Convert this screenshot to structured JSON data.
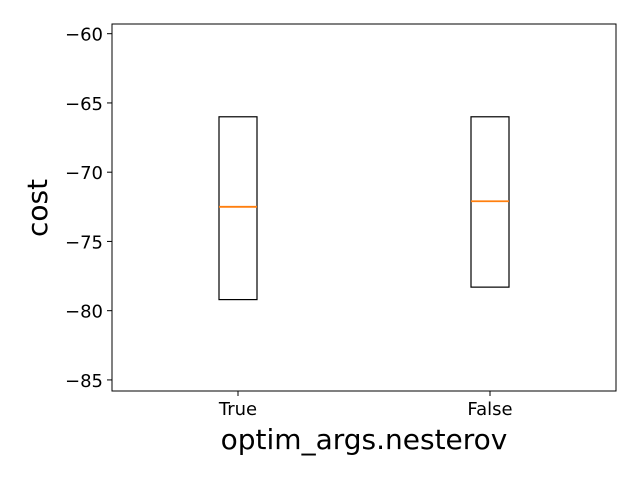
{
  "chart_data": {
    "type": "box",
    "title": "",
    "xlabel": "optim_args.nesterov",
    "ylabel": "cost",
    "categories": [
      "True",
      "False"
    ],
    "boxes": [
      {
        "label": "True",
        "q1": -79.2,
        "median": -72.5,
        "q3": -66.0
      },
      {
        "label": "False",
        "q1": -78.3,
        "median": -72.1,
        "q3": -66.0
      }
    ],
    "ylim": [
      -85.8,
      -59.3
    ],
    "yticks": [
      -60,
      -65,
      -70,
      -75,
      -80,
      -85
    ],
    "ytick_labels": [
      "−60",
      "−65",
      "−70",
      "−75",
      "−80",
      "−85"
    ],
    "grid": false,
    "colors": {
      "box": "#000000",
      "median": "#ff7f0e",
      "background": "#ffffff"
    }
  }
}
